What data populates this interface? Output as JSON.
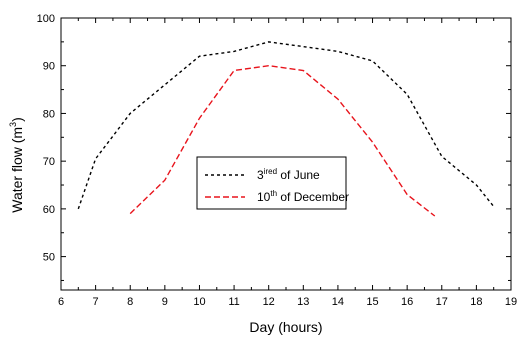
{
  "chart_data": {
    "type": "line",
    "xlabel": "Day (hours)",
    "ylabel": "Water flow (m3)",
    "ylabel_parts": {
      "base": "Water flow (m",
      "sup": "3",
      "end": ")"
    },
    "xlim": [
      6,
      19
    ],
    "ylim": [
      43,
      100
    ],
    "xticks": [
      6,
      7,
      8,
      9,
      10,
      11,
      12,
      13,
      14,
      15,
      16,
      17,
      18,
      19
    ],
    "yticks": [
      50,
      60,
      70,
      80,
      90,
      100
    ],
    "grid": false,
    "legend_position": "center",
    "series": [
      {
        "name": "3ired of June",
        "name_parts": {
          "base": "3",
          "sup": "ired",
          "end": " of June"
        },
        "color": "#000000",
        "x": [
          6.5,
          7,
          8,
          9,
          10,
          11,
          12,
          13,
          14,
          15,
          16,
          17,
          18,
          18.5
        ],
        "y": [
          60,
          70.5,
          80,
          86,
          92,
          93,
          95,
          94,
          93,
          91,
          84,
          71,
          65,
          60.5
        ]
      },
      {
        "name": "10th of December",
        "name_parts": {
          "base": "10",
          "sup": "th",
          "end": " of December"
        },
        "color": "#e8141c",
        "x": [
          8,
          9,
          10,
          11,
          12,
          13,
          14,
          15,
          16,
          16.8
        ],
        "y": [
          59,
          66,
          79,
          89,
          90,
          89,
          83,
          74,
          63,
          58.5
        ]
      }
    ]
  }
}
